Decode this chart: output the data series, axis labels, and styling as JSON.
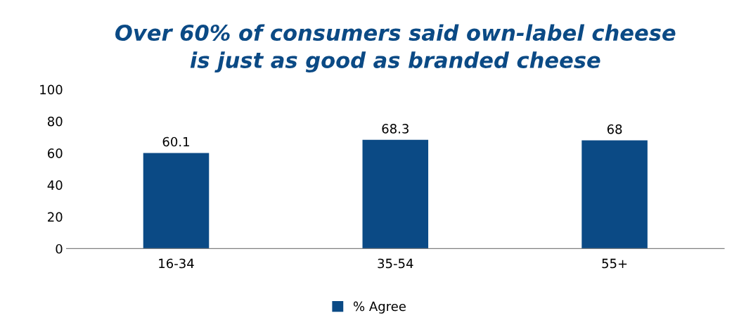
{
  "chart_data": {
    "type": "bar",
    "title": "Over 60% of consumers said own-label cheese\nis just as good as branded cheese",
    "categories": [
      "16-34",
      "35-54",
      "55+"
    ],
    "series": [
      {
        "name": "% Agree",
        "color": "#0b4a85",
        "values": [
          60.1,
          68.3,
          68
        ]
      }
    ],
    "ylim": [
      0,
      100
    ],
    "yticks": [
      0,
      20,
      40,
      60,
      80,
      100
    ],
    "data_labels": true,
    "grid": false,
    "legend": "bottom"
  }
}
